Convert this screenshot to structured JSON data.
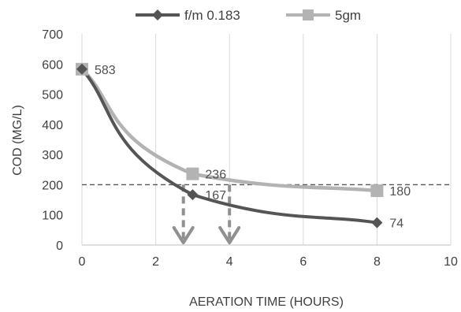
{
  "chart_data": {
    "type": "line",
    "xlabel": "AERATION TIME (HOURS)",
    "ylabel": "COD (MG/L)",
    "xlim": [
      0,
      10
    ],
    "ylim": [
      0,
      700
    ],
    "x_ticks": [
      "0",
      "2",
      "4",
      "6",
      "8",
      "10"
    ],
    "y_ticks": [
      "0",
      "100",
      "200",
      "300",
      "400",
      "500",
      "600",
      "700"
    ],
    "grid": "vertical",
    "legend_position": "top",
    "series": [
      {
        "name": "f/m 0.183",
        "color": "#555555",
        "marker": "diamond",
        "x": [
          0,
          3,
          8
        ],
        "y": [
          583,
          167,
          74
        ],
        "labels": [
          "",
          "167",
          "74"
        ]
      },
      {
        "name": "5gm",
        "color": "#b3b3b3",
        "marker": "square",
        "x": [
          0,
          3,
          8
        ],
        "y": [
          583,
          236,
          180
        ],
        "labels": [
          "583",
          "236",
          "180"
        ]
      }
    ],
    "reference_line": {
      "y": 200,
      "color": "#555555",
      "style": "dashed"
    },
    "arrows": [
      {
        "x": 2.75,
        "y_from": 200,
        "y_to": 0,
        "color": "#909090"
      },
      {
        "x": 4.0,
        "y_from": 200,
        "y_to": 0,
        "color": "#909090"
      }
    ]
  }
}
